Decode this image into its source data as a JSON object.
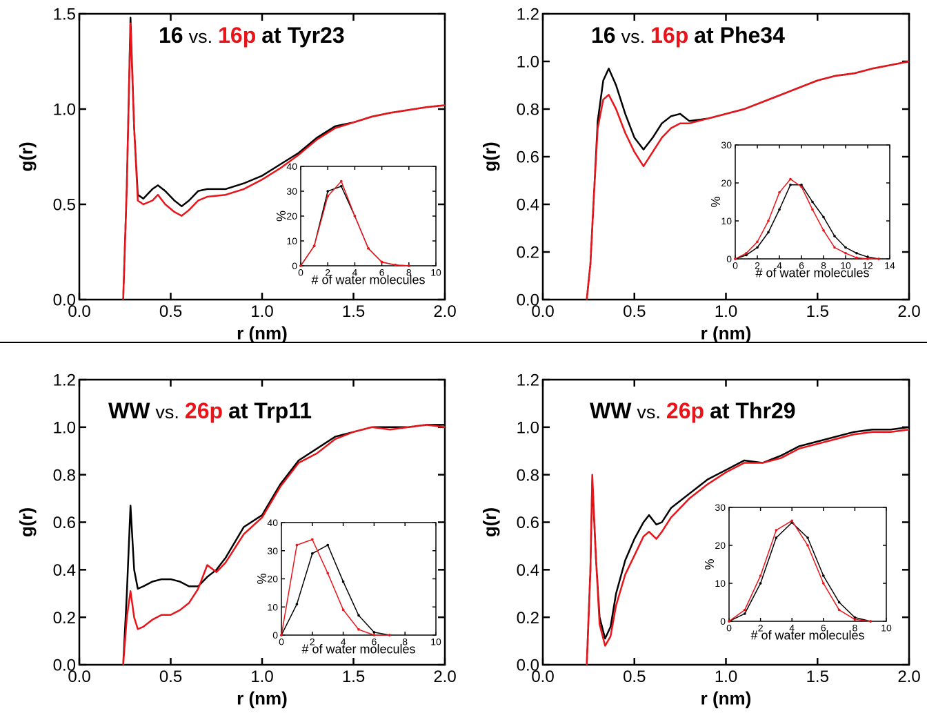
{
  "chart_data": [
    {
      "type": "line",
      "title": [
        "16",
        "vs.",
        "16p",
        "at Tyr23"
      ],
      "title_colors": [
        "#000000",
        "#000000",
        "#e8141a",
        "#000000"
      ],
      "title_weights": [
        "bold",
        "normal",
        "bold",
        "bold"
      ],
      "xlabel": "r (nm)",
      "ylabel": "g(r)",
      "xlim": [
        0,
        2
      ],
      "xticks": [
        {
          "value": 0,
          "label": "0.0"
        },
        0.5,
        {
          "value": 1,
          "label": "1.0"
        },
        1.5,
        {
          "value": 2,
          "label": "2.0"
        }
      ],
      "ylim": [
        0,
        1.5
      ],
      "yticks": [
        {
          "value": 0,
          "label": "0.0"
        },
        0.5,
        {
          "value": 1,
          "label": "1.0"
        },
        1.5
      ],
      "x": [
        0.24,
        0.26,
        0.28,
        0.3,
        0.32,
        0.35,
        0.4,
        0.43,
        0.47,
        0.52,
        0.56,
        0.6,
        0.65,
        0.7,
        0.8,
        0.9,
        1.0,
        1.1,
        1.2,
        1.3,
        1.4,
        1.5,
        1.6,
        1.7,
        1.8,
        1.9,
        2.0
      ],
      "series": [
        {
          "color": "#000000",
          "values": [
            0,
            0.6,
            1.48,
            0.9,
            0.55,
            0.53,
            0.58,
            0.6,
            0.57,
            0.52,
            0.49,
            0.52,
            0.57,
            0.58,
            0.58,
            0.61,
            0.65,
            0.71,
            0.77,
            0.85,
            0.91,
            0.93,
            0.96,
            0.98,
            0.995,
            1.01,
            1.02
          ]
        },
        {
          "color": "#e8141a",
          "values": [
            0,
            0.6,
            1.45,
            0.9,
            0.52,
            0.5,
            0.52,
            0.55,
            0.5,
            0.46,
            0.44,
            0.47,
            0.52,
            0.54,
            0.55,
            0.58,
            0.63,
            0.69,
            0.76,
            0.84,
            0.9,
            0.93,
            0.96,
            0.98,
            0.995,
            1.01,
            1.02
          ]
        }
      ],
      "inset": {
        "type": "line",
        "xlabel": "# of water molecules",
        "ylabel": "%",
        "xlim": [
          0,
          10
        ],
        "xticks": [
          0,
          2,
          4,
          6,
          8,
          10
        ],
        "ylim": [
          0,
          40
        ],
        "yticks": [
          0,
          10,
          20,
          30,
          40
        ],
        "x": [
          0,
          1,
          2,
          3,
          4,
          5,
          6,
          7,
          8
        ],
        "series": [
          {
            "color": "#000000",
            "values": [
              0,
              8,
              30,
              32,
              20,
              7,
              1.5,
              0.3,
              0
            ]
          },
          {
            "color": "#e8141a",
            "values": [
              0,
              8,
              28,
              34,
              20,
              7,
              1.5,
              0.3,
              0
            ]
          }
        ]
      }
    },
    {
      "type": "line",
      "title": [
        "16",
        "vs.",
        "16p",
        "at Phe34"
      ],
      "title_colors": [
        "#000000",
        "#000000",
        "#e8141a",
        "#000000"
      ],
      "title_weights": [
        "bold",
        "normal",
        "bold",
        "bold"
      ],
      "xlabel": "r (nm)",
      "ylabel": "g(r)",
      "xlim": [
        0,
        2
      ],
      "xticks": [
        {
          "value": 0,
          "label": "0.0"
        },
        0.5,
        {
          "value": 1,
          "label": "1.0"
        },
        1.5,
        {
          "value": 2,
          "label": "2.0"
        }
      ],
      "ylim": [
        0,
        1.2
      ],
      "yticks": [
        {
          "value": 0,
          "label": "0.0"
        },
        0.2,
        0.4,
        0.6,
        0.8,
        {
          "value": 1,
          "label": "1.0"
        },
        1.2
      ],
      "x": [
        0.24,
        0.26,
        0.28,
        0.3,
        0.33,
        0.36,
        0.4,
        0.45,
        0.5,
        0.55,
        0.6,
        0.65,
        0.7,
        0.75,
        0.8,
        0.9,
        1.0,
        1.1,
        1.2,
        1.3,
        1.4,
        1.5,
        1.6,
        1.7,
        1.8,
        1.9,
        2.0
      ],
      "series": [
        {
          "color": "#000000",
          "values": [
            0,
            0.15,
            0.45,
            0.75,
            0.92,
            0.97,
            0.9,
            0.78,
            0.68,
            0.63,
            0.68,
            0.74,
            0.77,
            0.78,
            0.75,
            0.76,
            0.78,
            0.8,
            0.83,
            0.86,
            0.89,
            0.92,
            0.94,
            0.95,
            0.97,
            0.985,
            1.0
          ]
        },
        {
          "color": "#e8141a",
          "values": [
            0,
            0.15,
            0.45,
            0.72,
            0.84,
            0.86,
            0.8,
            0.7,
            0.62,
            0.56,
            0.62,
            0.68,
            0.72,
            0.74,
            0.74,
            0.76,
            0.78,
            0.8,
            0.83,
            0.86,
            0.89,
            0.92,
            0.94,
            0.95,
            0.97,
            0.985,
            1.0
          ]
        }
      ],
      "inset": {
        "type": "line",
        "xlabel": "# of water molecules",
        "ylabel": "%",
        "xlim": [
          0,
          14
        ],
        "xticks": [
          0,
          2,
          4,
          6,
          8,
          10,
          12,
          14
        ],
        "ylim": [
          0,
          30
        ],
        "yticks": [
          0,
          10,
          20,
          30
        ],
        "x": [
          0,
          1,
          2,
          3,
          4,
          5,
          6,
          7,
          8,
          9,
          10,
          11,
          12,
          13
        ],
        "series": [
          {
            "color": "#000000",
            "values": [
              0,
              1,
              3,
              7,
              13,
              19.5,
              19.5,
              15,
              11,
              6,
              3,
              1.5,
              0.5,
              0
            ]
          },
          {
            "color": "#e8141a",
            "values": [
              0,
              1.5,
              4.5,
              10,
              17.5,
              21,
              19,
              13,
              7.5,
              3,
              1.5,
              0.3,
              0,
              0
            ]
          }
        ]
      }
    },
    {
      "type": "line",
      "title": [
        "WW",
        "vs.",
        "26p",
        "at Trp11"
      ],
      "title_colors": [
        "#000000",
        "#000000",
        "#e8141a",
        "#000000"
      ],
      "title_weights": [
        "bold",
        "normal",
        "bold",
        "bold"
      ],
      "xlabel": "r (nm)",
      "ylabel": "g(r)",
      "xlim": [
        0,
        2
      ],
      "xticks": [
        {
          "value": 0,
          "label": "0.0"
        },
        0.5,
        {
          "value": 1,
          "label": "1.0"
        },
        1.5,
        {
          "value": 2,
          "label": "2.0"
        }
      ],
      "ylim": [
        0,
        1.2
      ],
      "yticks": [
        {
          "value": 0,
          "label": "0.0"
        },
        0.2,
        0.4,
        0.6,
        0.8,
        {
          "value": 1,
          "label": "1.0"
        },
        1.2
      ],
      "x": [
        0.24,
        0.26,
        0.28,
        0.3,
        0.32,
        0.35,
        0.4,
        0.45,
        0.5,
        0.55,
        0.6,
        0.65,
        0.7,
        0.75,
        0.8,
        0.9,
        1.0,
        1.1,
        1.2,
        1.3,
        1.4,
        1.5,
        1.6,
        1.7,
        1.8,
        1.9,
        2.0
      ],
      "series": [
        {
          "color": "#000000",
          "values": [
            0,
            0.3,
            0.67,
            0.4,
            0.32,
            0.33,
            0.35,
            0.36,
            0.36,
            0.35,
            0.33,
            0.33,
            0.37,
            0.4,
            0.45,
            0.58,
            0.63,
            0.76,
            0.86,
            0.91,
            0.96,
            0.98,
            1.0,
            1.0,
            1.0,
            1.01,
            1.01
          ]
        },
        {
          "color": "#e8141a",
          "values": [
            0,
            0.2,
            0.31,
            0.2,
            0.15,
            0.16,
            0.19,
            0.21,
            0.21,
            0.23,
            0.26,
            0.32,
            0.42,
            0.39,
            0.43,
            0.55,
            0.62,
            0.75,
            0.85,
            0.89,
            0.95,
            0.98,
            1.0,
            0.99,
            1.0,
            1.01,
            1.0
          ]
        }
      ],
      "inset": {
        "type": "line",
        "xlabel": "# of water molecules",
        "ylabel": "%",
        "xlim": [
          0,
          10
        ],
        "xticks": [
          0,
          2,
          4,
          6,
          8,
          10
        ],
        "ylim": [
          0,
          40
        ],
        "yticks": [
          0,
          10,
          20,
          30,
          40
        ],
        "x": [
          0,
          1,
          2,
          3,
          4,
          5,
          6,
          7
        ],
        "series": [
          {
            "color": "#000000",
            "values": [
              0,
              11,
              29,
              32,
              19,
              7,
              1,
              0
            ]
          },
          {
            "color": "#e8141a",
            "values": [
              0,
              32,
              34,
              22,
              9,
              2,
              0,
              0
            ]
          }
        ]
      }
    },
    {
      "type": "line",
      "title": [
        "WW",
        "vs.",
        "26p",
        "at Thr29"
      ],
      "title_colors": [
        "#000000",
        "#000000",
        "#e8141a",
        "#000000"
      ],
      "title_weights": [
        "bold",
        "normal",
        "bold",
        "bold"
      ],
      "xlabel": "r (nm)",
      "ylabel": "g(r)",
      "xlim": [
        0,
        2
      ],
      "xticks": [
        {
          "value": 0,
          "label": "0.0"
        },
        0.5,
        {
          "value": 1,
          "label": "1.0"
        },
        1.5,
        {
          "value": 2,
          "label": "2.0"
        }
      ],
      "ylim": [
        0,
        1.2
      ],
      "yticks": [
        {
          "value": 0,
          "label": "0.0"
        },
        0.2,
        0.4,
        0.6,
        0.8,
        {
          "value": 1,
          "label": "1.0"
        },
        1.2
      ],
      "x": [
        0.24,
        0.26,
        0.27,
        0.29,
        0.31,
        0.34,
        0.37,
        0.4,
        0.45,
        0.5,
        0.55,
        0.58,
        0.62,
        0.65,
        0.7,
        0.8,
        0.9,
        1.0,
        1.1,
        1.2,
        1.3,
        1.4,
        1.5,
        1.6,
        1.7,
        1.8,
        1.9,
        2.0
      ],
      "series": [
        {
          "color": "#000000",
          "values": [
            0,
            0.4,
            0.78,
            0.45,
            0.2,
            0.11,
            0.16,
            0.3,
            0.44,
            0.53,
            0.6,
            0.63,
            0.59,
            0.6,
            0.66,
            0.72,
            0.78,
            0.82,
            0.86,
            0.85,
            0.88,
            0.92,
            0.94,
            0.96,
            0.98,
            0.99,
            0.99,
            1.0
          ]
        },
        {
          "color": "#e8141a",
          "values": [
            0,
            0.4,
            0.8,
            0.45,
            0.17,
            0.08,
            0.12,
            0.25,
            0.38,
            0.46,
            0.54,
            0.56,
            0.53,
            0.56,
            0.62,
            0.7,
            0.76,
            0.81,
            0.85,
            0.85,
            0.87,
            0.91,
            0.93,
            0.95,
            0.97,
            0.98,
            0.98,
            0.99
          ]
        }
      ],
      "inset": {
        "type": "line",
        "xlabel": "# of water molecules",
        "ylabel": "%",
        "xlim": [
          0,
          10
        ],
        "xticks": [
          0,
          2,
          4,
          6,
          8,
          10
        ],
        "ylim": [
          0,
          30
        ],
        "yticks": [
          0,
          10,
          20,
          30
        ],
        "x": [
          0,
          1,
          2,
          3,
          4,
          5,
          6,
          7,
          8,
          9
        ],
        "series": [
          {
            "color": "#000000",
            "values": [
              0,
              2,
              10,
              22,
              26,
              22,
              12,
              5,
              1,
              0
            ]
          },
          {
            "color": "#e8141a",
            "values": [
              0,
              3,
              12,
              24,
              26.5,
              20,
              10,
              3,
              0.5,
              0
            ]
          }
        ]
      }
    }
  ]
}
